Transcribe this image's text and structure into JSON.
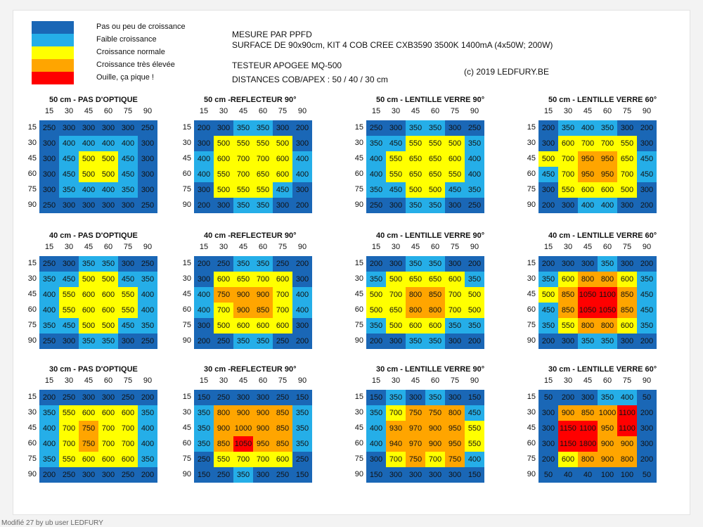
{
  "legend": [
    {
      "color": "#1a67b6",
      "label": "Pas ou peu de croissance"
    },
    {
      "color": "#25aee8",
      "label": "Faible croissance"
    },
    {
      "color": "#ffff00",
      "label": "Croissance normale"
    },
    {
      "color": "#ffa500",
      "label": "Croissance très élevée"
    },
    {
      "color": "#ff0000",
      "label": "Ouille, ça pique !"
    }
  ],
  "header": {
    "line1": "MESURE PAR PPFD",
    "line2": "SURFACE DE 90x90cm, KIT 4 COB CREE CXB3590 3500K 1400mA (4x50W; 200W)",
    "line3": "TESTEUR APOGEE MQ-500",
    "line4": "DISTANCES COB/APEX : 50 / 40 / 30 cm",
    "copyright": "(c) 2019 LEDFURY.BE"
  },
  "footer": "Modifié 27 by ub user LEDFURY",
  "chart_data": {
    "type": "heatmap",
    "x_ticks": [
      "15",
      "30",
      "45",
      "60",
      "75",
      "90"
    ],
    "y_ticks": [
      "15",
      "30",
      "45",
      "60",
      "75",
      "90"
    ],
    "color_scale": [
      {
        "max": 300,
        "color": "#1a67b6"
      },
      {
        "max": 450,
        "color": "#25aee8"
      },
      {
        "max": 700,
        "color": "#ffff00"
      },
      {
        "max": 1000,
        "color": "#ffa500"
      },
      {
        "max": 99999,
        "color": "#ff0000"
      }
    ],
    "panels": [
      {
        "title": "50 cm - PAS D'OPTIQUE",
        "values": [
          [
            250,
            300,
            300,
            300,
            300,
            250
          ],
          [
            300,
            400,
            400,
            400,
            400,
            300
          ],
          [
            300,
            450,
            500,
            500,
            450,
            300
          ],
          [
            300,
            450,
            500,
            500,
            450,
            300
          ],
          [
            300,
            350,
            400,
            400,
            350,
            300
          ],
          [
            250,
            300,
            300,
            300,
            300,
            250
          ]
        ]
      },
      {
        "title": "50 cm -REFLECTEUR 90°",
        "values": [
          [
            200,
            300,
            350,
            350,
            300,
            200
          ],
          [
            300,
            500,
            550,
            550,
            500,
            300
          ],
          [
            400,
            600,
            700,
            700,
            600,
            400
          ],
          [
            400,
            550,
            700,
            650,
            600,
            400
          ],
          [
            300,
            500,
            550,
            550,
            450,
            300
          ],
          [
            200,
            300,
            350,
            350,
            300,
            200
          ]
        ]
      },
      {
        "title": "50 cm - LENTILLE VERRE 90°",
        "values": [
          [
            250,
            300,
            350,
            350,
            300,
            250
          ],
          [
            350,
            450,
            550,
            550,
            500,
            350
          ],
          [
            400,
            550,
            650,
            650,
            600,
            400
          ],
          [
            400,
            550,
            650,
            650,
            550,
            400
          ],
          [
            350,
            450,
            500,
            500,
            450,
            350
          ],
          [
            250,
            300,
            350,
            350,
            300,
            250
          ]
        ]
      },
      {
        "title": "50 cm - LENTILLE VERRE 60°",
        "values": [
          [
            200,
            350,
            400,
            350,
            300,
            200
          ],
          [
            300,
            600,
            700,
            700,
            550,
            300
          ],
          [
            500,
            700,
            950,
            950,
            650,
            450
          ],
          [
            450,
            700,
            950,
            950,
            700,
            450
          ],
          [
            300,
            550,
            600,
            600,
            500,
            300
          ],
          [
            200,
            300,
            400,
            400,
            300,
            200
          ]
        ]
      },
      {
        "title": "40 cm - PAS D'OPTIQUE",
        "values": [
          [
            250,
            300,
            350,
            350,
            300,
            250
          ],
          [
            350,
            450,
            500,
            500,
            450,
            350
          ],
          [
            400,
            550,
            600,
            600,
            550,
            400
          ],
          [
            400,
            550,
            600,
            600,
            550,
            400
          ],
          [
            350,
            450,
            500,
            500,
            450,
            350
          ],
          [
            250,
            300,
            350,
            350,
            300,
            250
          ]
        ]
      },
      {
        "title": "40 cm -REFLECTEUR 90°",
        "values": [
          [
            200,
            250,
            350,
            350,
            250,
            200
          ],
          [
            300,
            600,
            650,
            700,
            600,
            300
          ],
          [
            400,
            750,
            900,
            900,
            700,
            400
          ],
          [
            400,
            700,
            900,
            850,
            700,
            400
          ],
          [
            300,
            500,
            600,
            600,
            600,
            300
          ],
          [
            200,
            250,
            350,
            350,
            250,
            200
          ]
        ]
      },
      {
        "title": "40 cm - LENTILLE VERRE 90°",
        "values": [
          [
            200,
            300,
            350,
            350,
            300,
            200
          ],
          [
            350,
            500,
            650,
            650,
            600,
            350
          ],
          [
            500,
            700,
            800,
            850,
            700,
            500
          ],
          [
            500,
            650,
            800,
            800,
            700,
            500
          ],
          [
            350,
            500,
            600,
            600,
            350,
            350
          ],
          [
            200,
            300,
            350,
            350,
            300,
            200
          ]
        ]
      },
      {
        "title": "40 cm - LENTILLE VERRE 60°",
        "values": [
          [
            200,
            300,
            300,
            350,
            300,
            200
          ],
          [
            350,
            600,
            800,
            800,
            600,
            350
          ],
          [
            500,
            850,
            1050,
            1100,
            850,
            450
          ],
          [
            450,
            850,
            1050,
            1050,
            850,
            450
          ],
          [
            350,
            550,
            800,
            800,
            600,
            350
          ],
          [
            200,
            300,
            350,
            350,
            300,
            200
          ]
        ]
      },
      {
        "title": "30 cm - PAS D'OPTIQUE",
        "values": [
          [
            200,
            250,
            300,
            300,
            250,
            200
          ],
          [
            350,
            550,
            600,
            600,
            600,
            350
          ],
          [
            400,
            700,
            750,
            700,
            700,
            400
          ],
          [
            400,
            700,
            750,
            700,
            700,
            400
          ],
          [
            350,
            550,
            600,
            600,
            600,
            350
          ],
          [
            200,
            250,
            300,
            300,
            250,
            200
          ]
        ]
      },
      {
        "title": "30 cm -REFLECTEUR 90°",
        "values": [
          [
            150,
            250,
            300,
            300,
            250,
            150
          ],
          [
            350,
            800,
            900,
            900,
            850,
            350
          ],
          [
            350,
            900,
            1000,
            900,
            850,
            350
          ],
          [
            350,
            850,
            1050,
            950,
            850,
            350
          ],
          [
            250,
            550,
            700,
            700,
            600,
            250
          ],
          [
            150,
            250,
            350,
            300,
            250,
            150
          ]
        ]
      },
      {
        "title": "30 cm - LENTILLE VERRE 90°",
        "values": [
          [
            150,
            350,
            300,
            350,
            300,
            150
          ],
          [
            350,
            700,
            750,
            750,
            800,
            450
          ],
          [
            400,
            930,
            970,
            900,
            950,
            550
          ],
          [
            400,
            940,
            970,
            900,
            950,
            550
          ],
          [
            300,
            700,
            750,
            700,
            750,
            400
          ],
          [
            150,
            300,
            300,
            300,
            300,
            150
          ]
        ]
      },
      {
        "title": "30 cm - LENTILLE VERRE 60°",
        "values": [
          [
            50,
            200,
            300,
            350,
            400,
            50
          ],
          [
            300,
            900,
            850,
            1000,
            1100,
            200
          ],
          [
            300,
            1150,
            1100,
            950,
            1100,
            300
          ],
          [
            300,
            1150,
            1800,
            900,
            900,
            300
          ],
          [
            200,
            600,
            800,
            900,
            800,
            200
          ],
          [
            50,
            40,
            40,
            100,
            100,
            50
          ]
        ]
      }
    ]
  }
}
